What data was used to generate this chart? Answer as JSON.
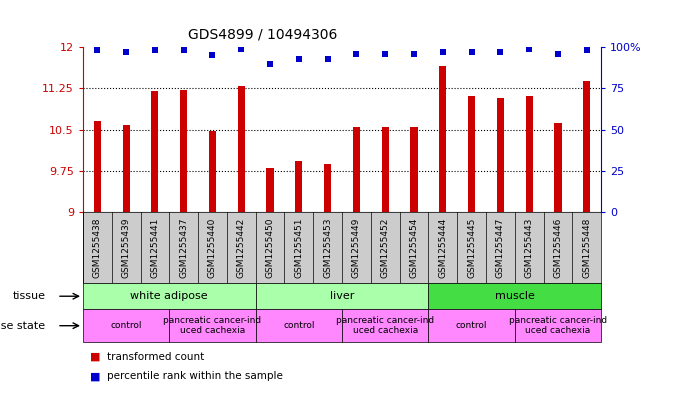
{
  "title": "GDS4899 / 10494306",
  "samples": [
    "GSM1255438",
    "GSM1255439",
    "GSM1255441",
    "GSM1255437",
    "GSM1255440",
    "GSM1255442",
    "GSM1255450",
    "GSM1255451",
    "GSM1255453",
    "GSM1255449",
    "GSM1255452",
    "GSM1255454",
    "GSM1255444",
    "GSM1255445",
    "GSM1255447",
    "GSM1255443",
    "GSM1255446",
    "GSM1255448"
  ],
  "transformed_count": [
    10.65,
    10.58,
    11.2,
    11.22,
    10.47,
    11.3,
    9.8,
    9.93,
    9.87,
    10.55,
    10.54,
    10.55,
    11.65,
    11.12,
    11.08,
    11.12,
    10.62,
    11.38
  ],
  "percentile_rank": [
    98,
    97,
    98,
    98,
    95,
    99,
    90,
    93,
    93,
    96,
    96,
    96,
    97,
    97,
    97,
    99,
    96,
    98
  ],
  "bar_color": "#cc0000",
  "dot_color": "#0000cc",
  "ylim_left": [
    9,
    12
  ],
  "ylim_right": [
    0,
    100
  ],
  "yticks_left": [
    9,
    9.75,
    10.5,
    11.25,
    12
  ],
  "yticks_right": [
    0,
    25,
    50,
    75,
    100
  ],
  "ytick_labels_left": [
    "9",
    "9.75",
    "10.5",
    "11.25",
    "12"
  ],
  "ytick_labels_right": [
    "0",
    "25",
    "50",
    "75",
    "100%"
  ],
  "tissue_groups": [
    {
      "label": "white adipose",
      "start": 0,
      "end": 6,
      "color": "#aaffaa"
    },
    {
      "label": "liver",
      "start": 6,
      "end": 12,
      "color": "#aaffaa"
    },
    {
      "label": "muscle",
      "start": 12,
      "end": 18,
      "color": "#44dd44"
    }
  ],
  "disease_groups": [
    {
      "label": "control",
      "start": 0,
      "end": 3
    },
    {
      "label": "pancreatic cancer-ind\nuced cachexia",
      "start": 3,
      "end": 6
    },
    {
      "label": "control",
      "start": 6,
      "end": 9
    },
    {
      "label": "pancreatic cancer-ind\nuced cachexia",
      "start": 9,
      "end": 12
    },
    {
      "label": "control",
      "start": 12,
      "end": 15
    },
    {
      "label": "pancreatic cancer-ind\nuced cachexia",
      "start": 15,
      "end": 18
    }
  ],
  "disease_color": "#ff88ff",
  "xtick_bg_color": "#cccccc",
  "label_tissue": "tissue",
  "label_disease": "disease state",
  "legend_red": "transformed count",
  "legend_blue": "percentile rank within the sample",
  "background_color": "#ffffff"
}
